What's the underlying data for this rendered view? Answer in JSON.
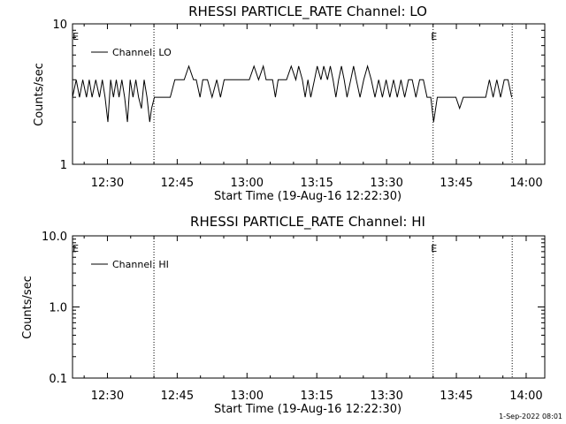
{
  "footer": {
    "date_stamp": "1-Sep-2022 08:01"
  },
  "chart_data": [
    {
      "type": "line",
      "title": "RHESSI PARTICLE_RATE Channel: LO",
      "xlabel": "Start Time (19-Aug-16 12:22:30)",
      "ylabel": "Counts/sec",
      "y_scale": "log",
      "ylim": [
        1,
        10
      ],
      "y_ticks": [
        1,
        10
      ],
      "y_tick_labels": [
        "1",
        "10"
      ],
      "x_unit": "minutes since 12:22:30",
      "xlim": [
        0,
        101.5
      ],
      "x_ticks": [
        7.5,
        22.5,
        37.5,
        52.5,
        67.5,
        82.5,
        97.5
      ],
      "x_tick_labels": [
        "12:30",
        "12:45",
        "13:00",
        "13:15",
        "13:30",
        "13:45",
        "14:00"
      ],
      "markers": [
        {
          "x": 0.5,
          "label": "E"
        },
        {
          "x": 17.5,
          "label": ""
        },
        {
          "x": 77.5,
          "label": "E"
        },
        {
          "x": 94.5,
          "label": ""
        }
      ],
      "legend": {
        "position": "top-left",
        "entries": [
          "Channel: LO"
        ]
      },
      "series": [
        {
          "name": "Channel: LO",
          "color": "#000000",
          "x": [
            0,
            0.8,
            1.5,
            2.2,
            3,
            3.6,
            4.2,
            5,
            5.8,
            6.4,
            7,
            7.6,
            8.2,
            8.8,
            9.4,
            10,
            10.6,
            11.2,
            11.8,
            12.4,
            13,
            13.6,
            14.2,
            14.8,
            15.4,
            16,
            16.6,
            17,
            17.6,
            18.2,
            19,
            20,
            21,
            22,
            23,
            24,
            25,
            26,
            26.6,
            27.4,
            28,
            29,
            30,
            31,
            31.8,
            32.6,
            33.4,
            34,
            34.8,
            35.6,
            36.2,
            37,
            38,
            39,
            40,
            41,
            41.6,
            42.2,
            43,
            43.6,
            44.2,
            45,
            46,
            47,
            48,
            48.6,
            49.4,
            50,
            50.6,
            51.2,
            52,
            52.6,
            53.4,
            54,
            54.8,
            55.4,
            56,
            56.6,
            57.2,
            57.8,
            58.4,
            59,
            59.8,
            60.4,
            61,
            61.8,
            62.6,
            63.4,
            64.2,
            65,
            65.8,
            66.6,
            67.4,
            68.2,
            69,
            69.8,
            70.6,
            71.4,
            72.2,
            73,
            73.8,
            74.6,
            75.4,
            76.2,
            77,
            77.6,
            78.4,
            79.2,
            80,
            80.8,
            81.6,
            82.4,
            83.2,
            84,
            85,
            86,
            87,
            88,
            88.8,
            89.6,
            90.4,
            91.2,
            92,
            92.8,
            93.6,
            94.4
          ],
          "y": [
            3,
            4,
            3,
            4,
            3,
            4,
            3,
            4,
            3,
            4,
            3,
            2,
            4,
            3,
            4,
            3,
            4,
            3,
            2,
            4,
            3,
            4,
            3,
            2.5,
            4,
            3,
            2,
            2.5,
            3,
            3,
            3,
            3,
            3,
            4,
            4,
            4,
            5,
            4,
            4,
            3,
            4,
            4,
            3,
            4,
            3,
            4,
            4,
            4,
            4,
            4,
            4,
            4,
            4,
            5,
            4,
            5,
            4,
            4,
            4,
            3,
            4,
            4,
            4,
            5,
            4,
            5,
            4,
            3,
            4,
            3,
            4,
            5,
            4,
            5,
            4,
            5,
            4,
            3,
            4,
            5,
            4,
            3,
            4,
            5,
            4,
            3,
            4,
            5,
            4,
            3,
            4,
            3,
            4,
            3,
            4,
            3,
            4,
            3,
            4,
            4,
            3,
            4,
            4,
            3,
            3,
            2,
            3,
            3,
            3,
            3,
            3,
            3,
            2.5,
            3,
            3,
            3,
            3,
            3,
            3,
            4,
            3,
            4,
            3,
            4,
            4,
            3
          ]
        }
      ]
    },
    {
      "type": "line",
      "title": "RHESSI PARTICLE_RATE Channel: HI",
      "xlabel": "Start Time (19-Aug-16 12:22:30)",
      "ylabel": "Counts/sec",
      "y_scale": "log",
      "ylim": [
        0.1,
        10
      ],
      "y_ticks": [
        0.1,
        1,
        10
      ],
      "y_tick_labels": [
        "0.1",
        "1.0",
        "10.0"
      ],
      "x_unit": "minutes since 12:22:30",
      "xlim": [
        0,
        101.5
      ],
      "x_ticks": [
        7.5,
        22.5,
        37.5,
        52.5,
        67.5,
        82.5,
        97.5
      ],
      "x_tick_labels": [
        "12:30",
        "12:45",
        "13:00",
        "13:15",
        "13:30",
        "13:45",
        "14:00"
      ],
      "markers": [
        {
          "x": 0.5,
          "label": "E"
        },
        {
          "x": 17.5,
          "label": ""
        },
        {
          "x": 77.5,
          "label": "E"
        },
        {
          "x": 94.5,
          "label": ""
        }
      ],
      "legend": {
        "position": "top-left",
        "entries": [
          "Channel: HI"
        ]
      },
      "series": [
        {
          "name": "Channel: HI",
          "color": "#000000",
          "x": [],
          "y": []
        }
      ]
    }
  ]
}
